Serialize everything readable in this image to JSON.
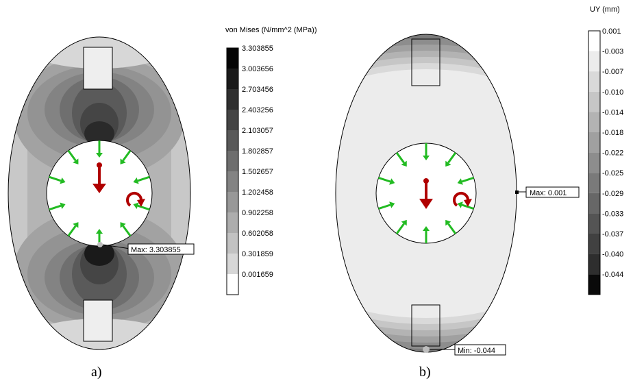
{
  "panel_a": {
    "caption": "a)",
    "legend_title": "von Mises (N/mm^2 (MPa))",
    "legend_values": [
      "3.303855",
      "3.003656",
      "2.703456",
      "2.403256",
      "2.103057",
      "1.802857",
      "1.502657",
      "1.202458",
      "0.902258",
      "0.602058",
      "0.301859",
      "0.001659"
    ],
    "legend_colors": [
      "#050505",
      "#1a1a1a",
      "#2f2f2f",
      "#444444",
      "#595959",
      "#6e6e6e",
      "#838383",
      "#989898",
      "#adadad",
      "#c2c2c2",
      "#d7d7d7",
      "#ffffff"
    ],
    "probe_label": "Max: 3.303855"
  },
  "panel_b": {
    "caption": "b)",
    "legend_title": "UY (mm)",
    "legend_values": [
      "0.001",
      "-0.003",
      "-0.007",
      "-0.010",
      "-0.014",
      "-0.018",
      "-0.022",
      "-0.025",
      "-0.029",
      "-0.033",
      "-0.037",
      "-0.040",
      "-0.044"
    ],
    "legend_colors": [
      "#ffffff",
      "#ececec",
      "#d9d9d9",
      "#c6c6c6",
      "#b3b3b3",
      "#a0a0a0",
      "#8d8d8d",
      "#7a7a7a",
      "#676767",
      "#545454",
      "#414141",
      "#2e2e2e",
      "#0a0a0a"
    ],
    "probe_max_label": "Max: 0.001",
    "probe_min_label": "Min: -0.044"
  },
  "colors": {
    "load_arrow": "#b00000",
    "pressure_arrow": "#22bb22"
  }
}
